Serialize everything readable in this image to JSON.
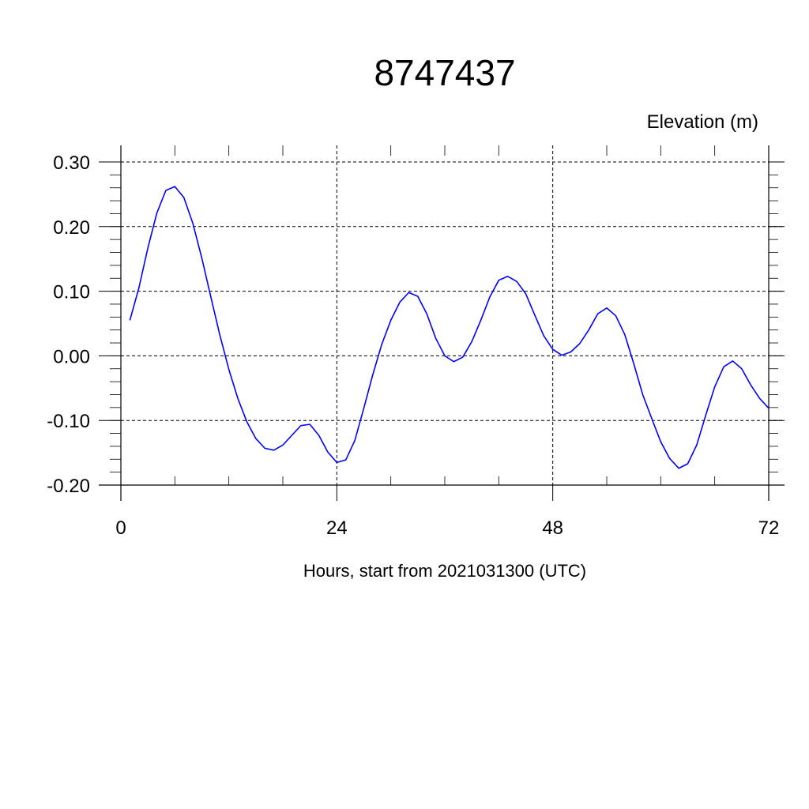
{
  "chart_data": {
    "type": "line",
    "title": "8747437",
    "ylabel": "Elevation (m)",
    "xlabel": "Hours, start from 2021031300 (UTC)",
    "xlim": [
      0,
      72
    ],
    "ylim": [
      -0.2,
      0.3
    ],
    "grid": true,
    "x_ticks": [
      0,
      24,
      48,
      72
    ],
    "x_tick_labels": [
      "0",
      "24",
      "48",
      "72"
    ],
    "y_ticks": [
      -0.2,
      -0.1,
      0.0,
      0.1,
      0.2,
      0.3
    ],
    "y_tick_labels": [
      "-0.20",
      "-0.10",
      "0.00",
      "0.10",
      "0.20",
      "0.30"
    ],
    "line_color": "#0000ff",
    "series": [
      {
        "x": [
          1,
          2,
          3,
          4,
          5,
          6,
          7,
          8,
          9,
          10,
          11,
          12,
          13,
          14,
          15,
          16,
          17,
          18,
          19,
          20,
          21,
          22,
          23,
          24,
          25,
          26,
          27,
          28,
          29,
          30,
          31,
          32,
          33,
          34,
          35,
          36,
          37,
          38,
          39,
          40,
          41,
          42,
          43,
          44,
          45,
          46,
          47,
          48,
          49,
          50,
          51,
          52,
          53,
          54,
          55,
          56,
          57,
          58,
          59,
          60,
          61,
          62,
          63,
          64,
          65,
          66,
          67,
          68,
          69,
          70,
          71,
          72
        ],
        "values": [
          0.055,
          0.105,
          0.167,
          0.221,
          0.256,
          0.262,
          0.245,
          0.205,
          0.151,
          0.091,
          0.032,
          -0.021,
          -0.066,
          -0.102,
          -0.128,
          -0.143,
          -0.146,
          -0.138,
          -0.123,
          -0.108,
          -0.106,
          -0.123,
          -0.149,
          -0.165,
          -0.161,
          -0.131,
          -0.081,
          -0.029,
          0.018,
          0.055,
          0.083,
          0.098,
          0.092,
          0.065,
          0.027,
          0.0,
          -0.009,
          -0.002,
          0.022,
          0.055,
          0.091,
          0.117,
          0.123,
          0.115,
          0.096,
          0.063,
          0.031,
          0.01,
          0.001,
          0.006,
          0.019,
          0.04,
          0.065,
          0.074,
          0.062,
          0.033,
          -0.012,
          -0.06,
          -0.097,
          -0.133,
          -0.159,
          -0.174,
          -0.167,
          -0.138,
          -0.092,
          -0.048,
          -0.017,
          -0.008,
          -0.02,
          -0.045,
          -0.066,
          -0.081
        ]
      }
    ]
  }
}
